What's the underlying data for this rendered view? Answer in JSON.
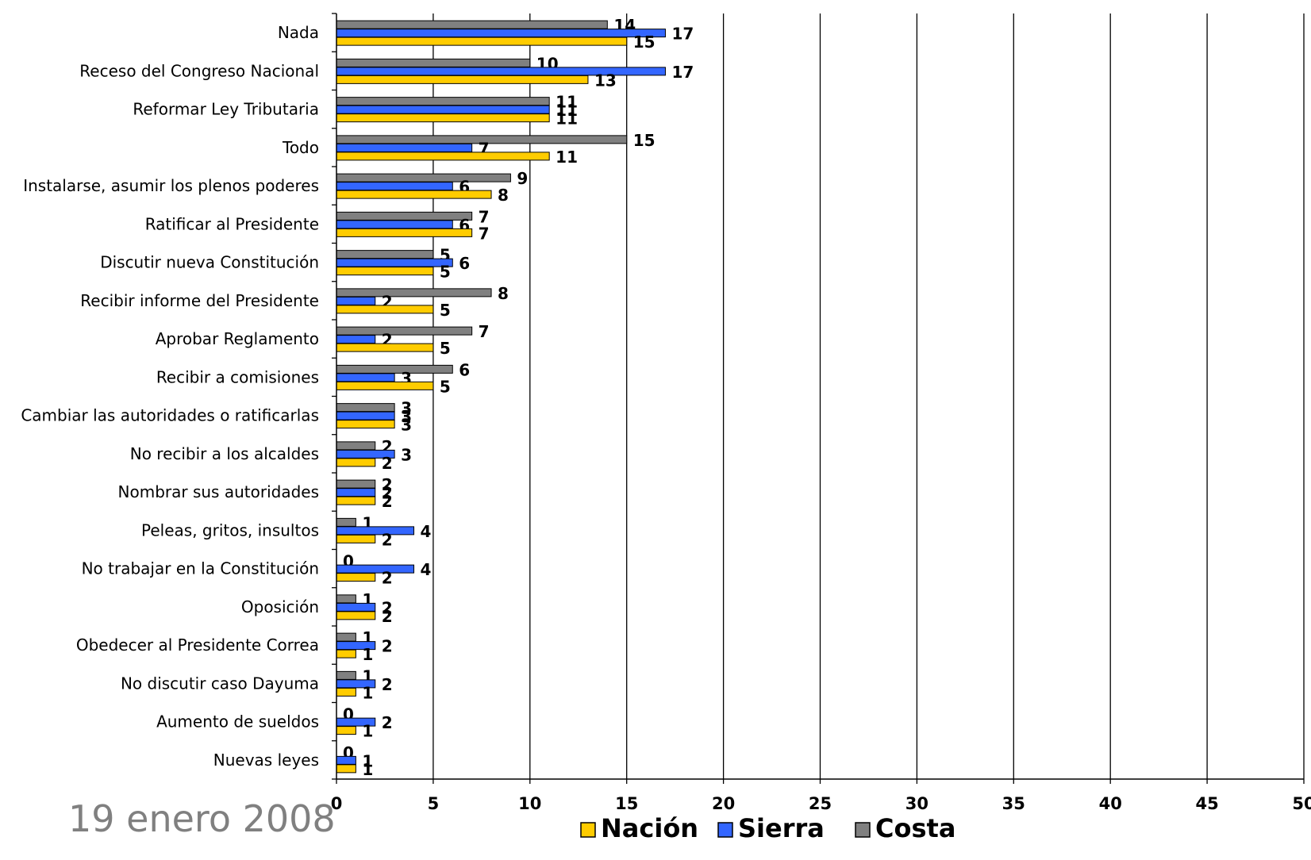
{
  "footer": {
    "date": "19 enero 2008"
  },
  "chart_data": {
    "type": "bar",
    "orientation": "horizontal",
    "categories": [
      "Nada",
      "Receso del Congreso Nacional",
      "Reformar Ley Tributaria",
      "Todo",
      "Instalarse, asumir los plenos poderes",
      "Ratificar al Presidente",
      "Discutir nueva Constitución",
      "Recibir informe del Presidente",
      "Aprobar Reglamento",
      "Recibir a comisiones",
      "Cambiar las autoridades o ratificarlas",
      "No recibir a los alcaldes",
      "Nombrar sus autoridades",
      "Peleas, gritos, insultos",
      "No trabajar en la Constitución",
      "Oposición",
      "Obedecer al Presidente Correa",
      "No discutir caso Dayuma",
      "Aumento de sueldos",
      "Nuevas leyes"
    ],
    "series": [
      {
        "name": "Costa",
        "color": "#808080",
        "values": [
          14,
          10,
          11,
          15,
          9,
          7,
          5,
          8,
          7,
          6,
          3,
          2,
          2,
          1,
          0,
          1,
          1,
          1,
          0,
          0
        ]
      },
      {
        "name": "Sierra",
        "color": "#3366ff",
        "values": [
          17,
          17,
          11,
          7,
          6,
          6,
          6,
          2,
          2,
          3,
          3,
          3,
          2,
          4,
          4,
          2,
          2,
          2,
          2,
          1
        ]
      },
      {
        "name": "Nación",
        "color": "#ffcc00",
        "values": [
          15,
          13,
          11,
          11,
          8,
          7,
          5,
          5,
          5,
          5,
          3,
          2,
          2,
          2,
          2,
          2,
          1,
          1,
          1,
          1
        ]
      }
    ],
    "legend_order": [
      "Nación",
      "Sierra",
      "Costa"
    ],
    "xlim": [
      0,
      50
    ],
    "xticks": [
      0,
      5,
      10,
      15,
      20,
      25,
      30,
      35,
      40,
      45,
      50
    ],
    "grid": "vertical",
    "legend_position": "bottom",
    "data_labels": true
  }
}
